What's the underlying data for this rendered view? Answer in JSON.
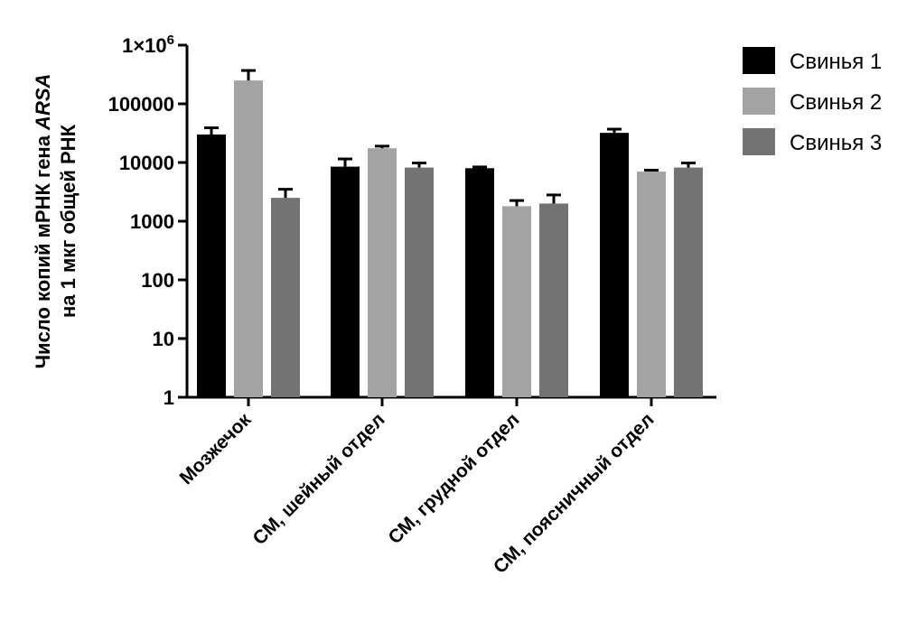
{
  "chart_data": {
    "type": "bar",
    "yscale": "log",
    "ylim": [
      1,
      1000000
    ],
    "yticks": [
      {
        "value": 1,
        "label": "1"
      },
      {
        "value": 10,
        "label": "10"
      },
      {
        "value": 100,
        "label": "100"
      },
      {
        "value": 1000,
        "label": "1000"
      },
      {
        "value": 10000,
        "label": "10000"
      },
      {
        "value": 100000,
        "label": "100000"
      },
      {
        "value": 1000000,
        "label": "1×10⁶"
      }
    ],
    "ylabel_line1_prefix": "Число копий мРНК гена ",
    "ylabel_line1_italic": "ARSA",
    "ylabel_line2": "на 1 мкг общей РНК",
    "xlabel": "",
    "categories": [
      "Мозжечок",
      "СМ, шейный отдел",
      "СМ, грудной отдел",
      "СМ, поясничный отдел"
    ],
    "series": [
      {
        "name": "Свинья 1",
        "color": "#000000",
        "values": [
          30000,
          8500,
          8000,
          32000
        ],
        "errors": [
          39000,
          11500,
          8400,
          37000
        ]
      },
      {
        "name": "Свинья 2",
        "color": "#a3a3a3",
        "values": [
          250000,
          17500,
          1800,
          7000
        ],
        "errors": [
          370000,
          19000,
          2250,
          7400
        ]
      },
      {
        "name": "Свинья 3",
        "color": "#737373",
        "values": [
          2500,
          8200,
          2000,
          8200
        ],
        "errors": [
          3500,
          9800,
          2800,
          9800
        ]
      }
    ],
    "legend_position": "top-right",
    "grid": false
  }
}
